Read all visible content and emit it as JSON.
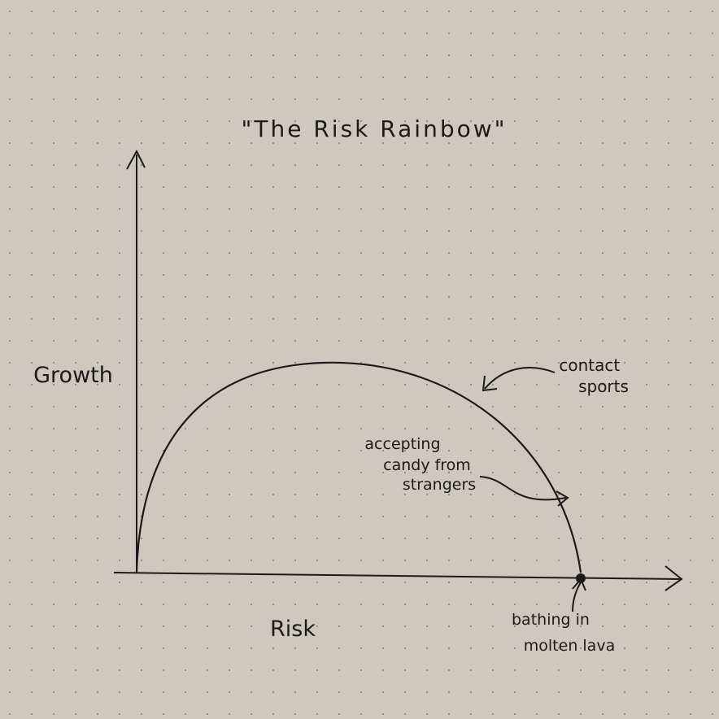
{
  "chart_data": {
    "type": "line",
    "title": "\"The Risk Rainbow\"",
    "xlabel": "Risk",
    "ylabel": "Growth",
    "grid": "dotted paper",
    "legend": "none",
    "series": [
      {
        "curve": "semicircle",
        "from": [
          0,
          0
        ],
        "peak": [
          0.42,
          1
        ],
        "to": [
          1,
          0
        ]
      }
    ],
    "annotations": [
      {
        "label_lines": [
          "contact",
          "sports"
        ],
        "x": 0.78,
        "y": 0.82
      },
      {
        "label_lines": [
          "accepting",
          "candy from",
          "strangers"
        ],
        "x": 0.96,
        "y": 0.37
      },
      {
        "label_lines": [
          "bathing in",
          "molten lava"
        ],
        "x": 1.0,
        "y": 0
      }
    ]
  },
  "colors": {
    "paper": "#cfc8c1",
    "ink": "#1b1b1b",
    "dots": "#8f8a86"
  }
}
